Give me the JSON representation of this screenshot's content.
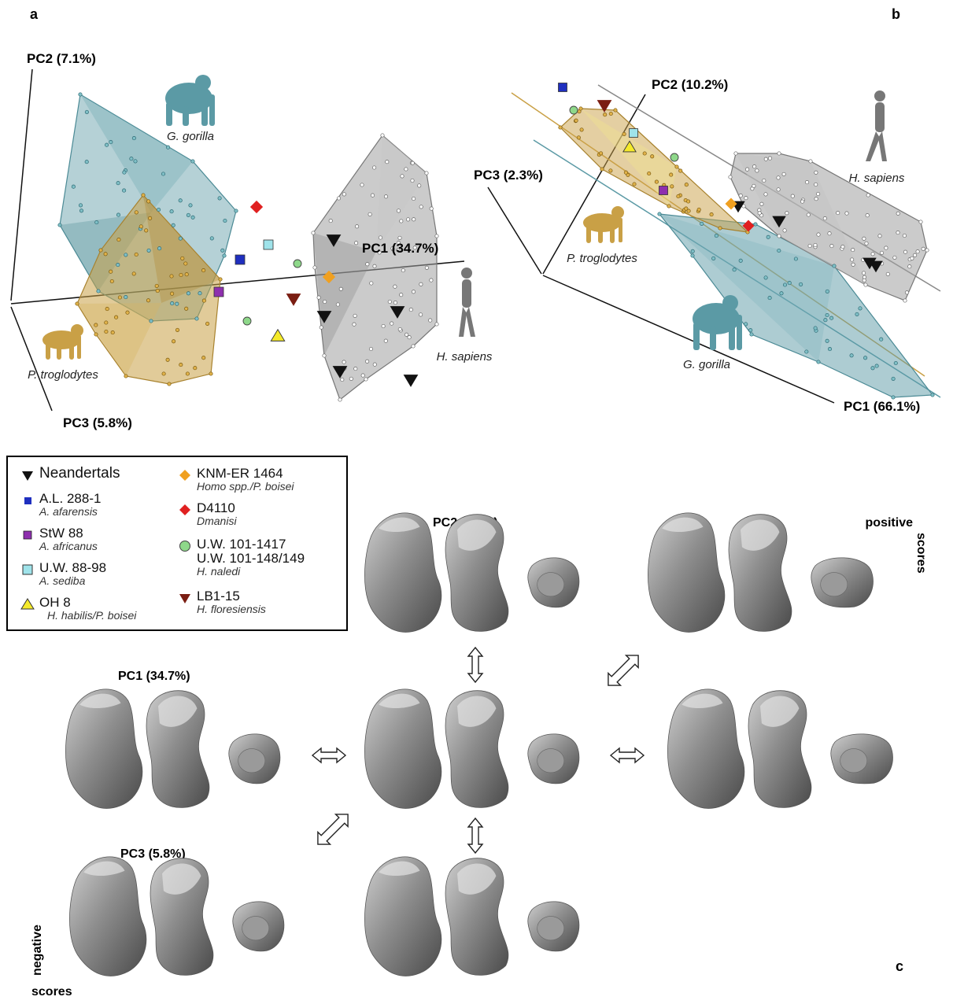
{
  "panel_labels": {
    "a": "a",
    "b": "b",
    "c": "c"
  },
  "chart_data": [
    {
      "type": "scatter",
      "panel": "a",
      "axes": {
        "pc1": "PC1 (34.7%)",
        "pc2": "PC2 (7.1%)",
        "pc3": "PC3 (5.8%)"
      },
      "groups": [
        {
          "name": "G. gorilla",
          "color": "#5b9aa5"
        },
        {
          "name": "P. troglodytes",
          "color": "#c9a046"
        },
        {
          "name": "H. sapiens",
          "color": "#8c8c8c"
        }
      ],
      "grid": false
    },
    {
      "type": "scatter",
      "panel": "b",
      "axes": {
        "pc1": "PC1 (66.1%)",
        "pc2": "PC2 (10.2%)",
        "pc3": "PC3 (2.3%)"
      },
      "groups": [
        {
          "name": "H. sapiens",
          "color": "#8c8c8c"
        },
        {
          "name": "P. troglodytes",
          "color": "#c9a046"
        },
        {
          "name": "G. gorilla",
          "color": "#5b9aa5"
        }
      ],
      "grid": false
    }
  ],
  "legend": [
    {
      "name": "Neandertals",
      "sub": "",
      "marker": "triangle-down",
      "color": "#111111",
      "icon": "black-triangle-icon"
    },
    {
      "name": "A.L. 288-1",
      "sub": "A. afarensis",
      "marker": "square",
      "color": "#1f2fbf",
      "icon": "blue-square-icon"
    },
    {
      "name": "StW 88",
      "sub": "A. africanus",
      "marker": "square",
      "color": "#8e2fae",
      "icon": "purple-square-icon"
    },
    {
      "name": "U.W. 88-98",
      "sub": "A. sediba",
      "marker": "square",
      "color": "#9fe3ea",
      "icon": "cyan-square-icon"
    },
    {
      "name": "OH 8",
      "sub": "H. habilis/P. boisei",
      "marker": "triangle-up",
      "color": "#f5ea2a",
      "icon": "yellow-triangle-icon"
    },
    {
      "name": "KNM-ER 1464",
      "sub": "Homo spp./P. boisei",
      "marker": "diamond",
      "color": "#f0a020",
      "icon": "orange-diamond-icon"
    },
    {
      "name": "D4110",
      "sub": "Dmanisi",
      "marker": "diamond",
      "color": "#e02020",
      "icon": "red-diamond-icon"
    },
    {
      "name": "U.W. 101-1417",
      "name2": "U.W. 101-148/149",
      "sub": "H. naledi",
      "marker": "circle",
      "color": "#8ed88a",
      "icon": "green-circle-icon"
    },
    {
      "name": "LB1-15",
      "sub": "H. floresiensis",
      "marker": "triangle-down",
      "color": "#7a1d12",
      "icon": "darkred-triangle-icon"
    }
  ],
  "panel_c": {
    "pc2_label": "PC2 (7.1%)",
    "pc1_label": "PC1 (34.7%)",
    "pc3_label": "PC3 (5.8%)",
    "positive": "positive",
    "negative": "negative",
    "scores": "scores"
  }
}
